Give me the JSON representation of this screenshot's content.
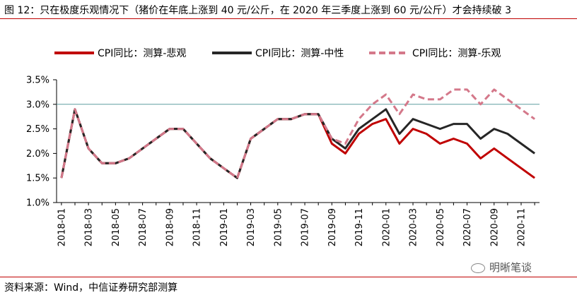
{
  "title": "图 12：只在极度乐观情况下（猪价在年底上涨到 40 元/公斤，在 2020 年三季度上涨到 60 元/公斤）才会持续破 3",
  "source": "资料来源：Wind，中信证券研究部测算",
  "watermark": "明晰笔谈",
  "chart_data": {
    "type": "line",
    "title": "",
    "xlabel": "",
    "ylabel": "",
    "ylim": [
      1.0,
      3.5
    ],
    "yticks": [
      "1.0%",
      "1.5%",
      "2.0%",
      "2.5%",
      "3.0%",
      "3.5%"
    ],
    "reference_line": 3.0,
    "legend_position": "top",
    "x": [
      "2018-01",
      "2018-02",
      "2018-03",
      "2018-04",
      "2018-05",
      "2018-06",
      "2018-07",
      "2018-08",
      "2018-09",
      "2018-10",
      "2018-11",
      "2018-12",
      "2019-01",
      "2019-02",
      "2019-03",
      "2019-04",
      "2019-05",
      "2019-06",
      "2019-07",
      "2019-08",
      "2019-09",
      "2019-10",
      "2019-11",
      "2019-12",
      "2020-01",
      "2020-02",
      "2020-03",
      "2020-04",
      "2020-05",
      "2020-06",
      "2020-07",
      "2020-08",
      "2020-09",
      "2020-10",
      "2020-11",
      "2020-12"
    ],
    "x_tick_labels": [
      "2018-01",
      "2018-03",
      "2018-05",
      "2018-07",
      "2018-09",
      "2018-11",
      "2019-01",
      "2019-03",
      "2019-05",
      "2019-07",
      "2019-09",
      "2019-11",
      "2020-01",
      "2020-03",
      "2020-05",
      "2020-07",
      "2020-09",
      "2020-11"
    ],
    "series": [
      {
        "name": "CPI同比：测算-悲观",
        "color": "#c00000",
        "style": "solid",
        "values": [
          1.5,
          2.9,
          2.1,
          1.8,
          1.8,
          1.9,
          2.1,
          2.3,
          2.5,
          2.5,
          2.2,
          1.9,
          1.7,
          1.5,
          2.3,
          2.5,
          2.7,
          2.7,
          2.8,
          2.8,
          2.2,
          2.0,
          2.4,
          2.6,
          2.7,
          2.2,
          2.5,
          2.4,
          2.2,
          2.3,
          2.2,
          1.9,
          2.1,
          1.9,
          1.7,
          1.5
        ]
      },
      {
        "name": "CPI同比：测算-中性",
        "color": "#262626",
        "style": "solid",
        "values": [
          1.5,
          2.9,
          2.1,
          1.8,
          1.8,
          1.9,
          2.1,
          2.3,
          2.5,
          2.5,
          2.2,
          1.9,
          1.7,
          1.5,
          2.3,
          2.5,
          2.7,
          2.7,
          2.8,
          2.8,
          2.3,
          2.1,
          2.5,
          2.7,
          2.9,
          2.4,
          2.7,
          2.6,
          2.5,
          2.6,
          2.6,
          2.3,
          2.5,
          2.4,
          2.2,
          2.0
        ]
      },
      {
        "name": "CPI同比：测算-乐观",
        "color": "#d4788a",
        "style": "dashed",
        "values": [
          1.5,
          2.9,
          2.1,
          1.8,
          1.8,
          1.9,
          2.1,
          2.3,
          2.5,
          2.5,
          2.2,
          1.9,
          1.7,
          1.5,
          2.3,
          2.5,
          2.7,
          2.7,
          2.8,
          2.8,
          2.3,
          2.2,
          2.7,
          3.0,
          3.2,
          2.8,
          3.2,
          3.1,
          3.1,
          3.3,
          3.3,
          3.0,
          3.3,
          3.1,
          2.9,
          2.7
        ]
      }
    ]
  }
}
